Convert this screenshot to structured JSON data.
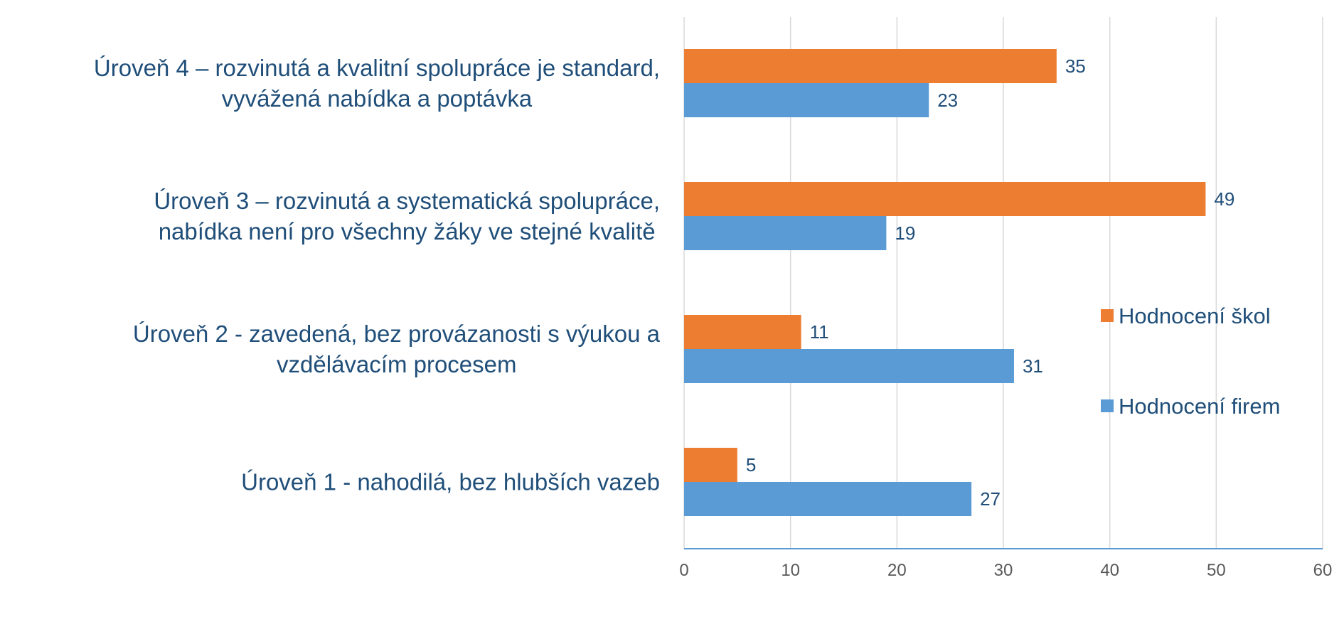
{
  "chart_data": {
    "type": "bar",
    "orientation": "horizontal",
    "title": "",
    "xlabel": "",
    "ylabel": "",
    "xlim": [
      0,
      60
    ],
    "x_ticks": [
      0,
      10,
      20,
      30,
      40,
      50,
      60
    ],
    "grid": "vertical",
    "legend_position": "right",
    "categories": [
      {
        "lines": [
          "Úroveň 4 – rozvinutá a kvalitní spolupráce je standard,",
          "vyvážená nabídka a poptávka"
        ]
      },
      {
        "lines": [
          "Úroveň 3 – rozvinutá a systematická spolupráce,",
          "nabídka není pro všechny žáky ve stejné kvalitě"
        ]
      },
      {
        "lines": [
          "Úroveň 2 - zavedená, bez provázanosti s výukou a",
          "vzdělávacím procesem"
        ]
      },
      {
        "lines": [
          "Úroveň 1 - nahodilá, bez hlubších vazeb"
        ]
      }
    ],
    "series": [
      {
        "name": "Hodnocení škol",
        "color": "#ED7D31",
        "values": [
          35,
          49,
          11,
          5
        ]
      },
      {
        "name": "Hodnocení firem",
        "color": "#5B9BD5",
        "values": [
          23,
          19,
          31,
          27
        ]
      }
    ],
    "colors": {
      "category_text": "#1F4E79",
      "data_label_text": "#1F4E79",
      "tick_text": "#595959",
      "gridline": "#D9D9D9",
      "axis_line": "#5B9BD5"
    }
  }
}
